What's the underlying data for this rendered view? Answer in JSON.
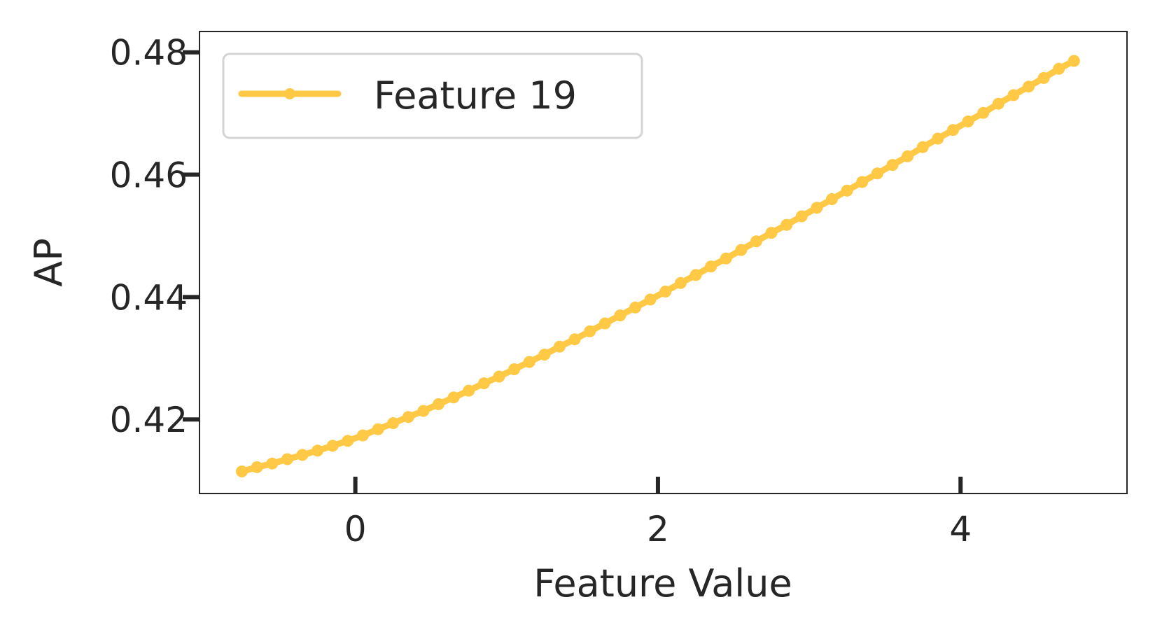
{
  "chart_data": {
    "type": "line",
    "xlabel": "Feature Value",
    "ylabel": "AP",
    "xlim": [
      -1.03,
      5.1
    ],
    "ylim": [
      0.4079,
      0.4834
    ],
    "xticks": [
      0,
      2,
      4
    ],
    "yticks": [
      0.42,
      0.44,
      0.46,
      0.48
    ],
    "grid": false,
    "legend_position": "top-left",
    "series": [
      {
        "name": "Feature 19",
        "color": "#ffc845",
        "marker": "circle",
        "x_start": -0.75,
        "x_end": 4.8,
        "x_step": 0.1,
        "y_values": [
          0.4115,
          0.4122,
          0.4128,
          0.4135,
          0.4142,
          0.4149,
          0.4157,
          0.4165,
          0.4174,
          0.4184,
          0.4194,
          0.4204,
          0.4214,
          0.4225,
          0.4236,
          0.4247,
          0.4259,
          0.427,
          0.4282,
          0.4294,
          0.4306,
          0.4319,
          0.4331,
          0.4344,
          0.4357,
          0.437,
          0.4383,
          0.4396,
          0.4409,
          0.4423,
          0.4436,
          0.445,
          0.4463,
          0.4477,
          0.4491,
          0.4505,
          0.4518,
          0.4532,
          0.4546,
          0.456,
          0.4574,
          0.4588,
          0.4602,
          0.4616,
          0.463,
          0.4645,
          0.4659,
          0.4673,
          0.4687,
          0.4701,
          0.4716,
          0.473,
          0.4744,
          0.4758,
          0.4773,
          0.4786
        ]
      }
    ]
  }
}
